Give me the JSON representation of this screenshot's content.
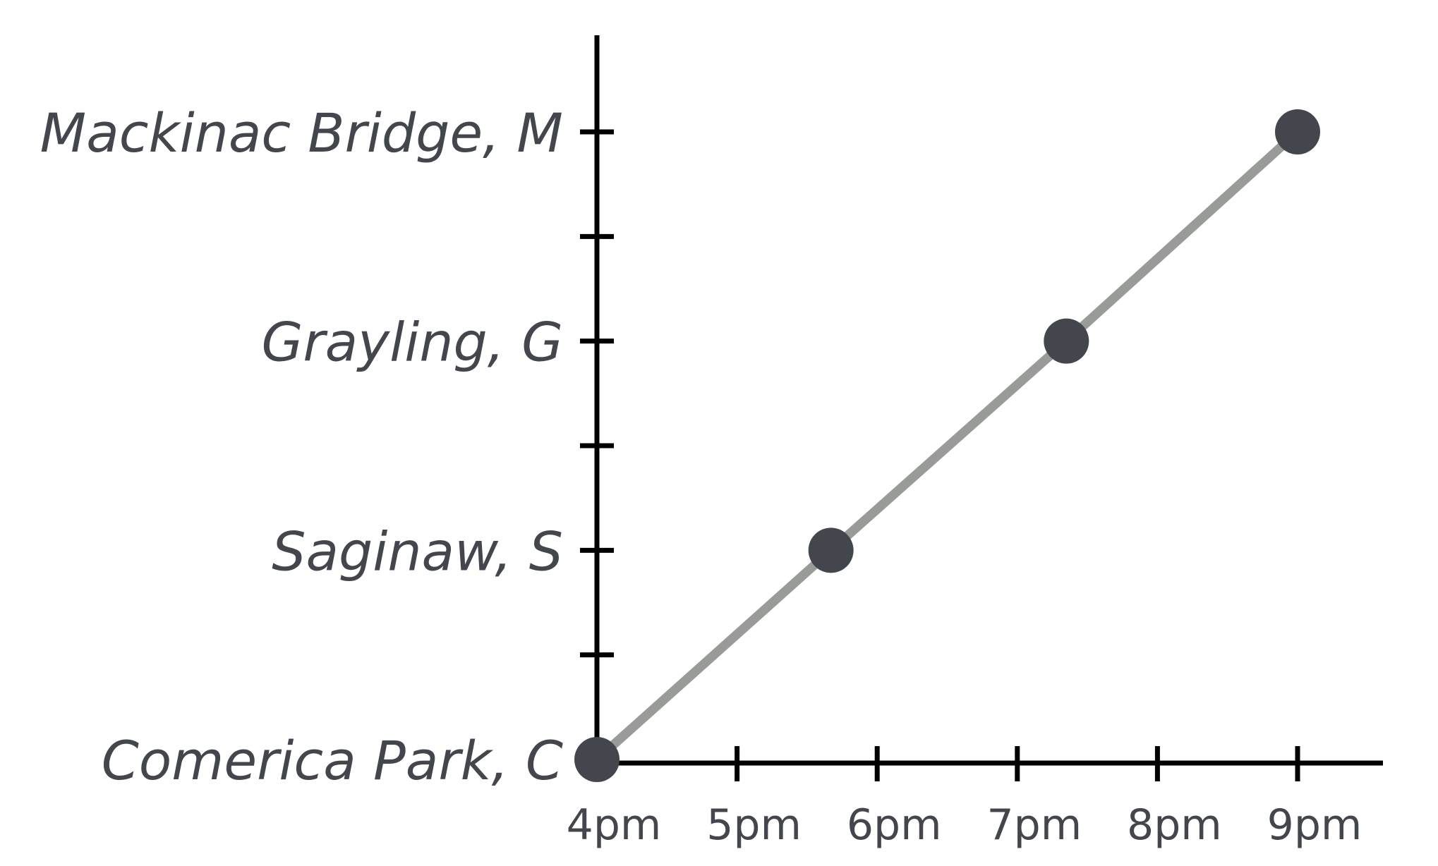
{
  "chart_data": {
    "type": "line",
    "title": "",
    "xlabel": "",
    "ylabel": "",
    "x_ticks": [
      "4pm",
      "5pm",
      "6pm",
      "7pm",
      "8pm",
      "9pm"
    ],
    "xlim": [
      0,
      5
    ],
    "y_ticks": [
      {
        "value": 0,
        "label": "Comerica Park, C"
      },
      {
        "value": 0.5,
        "label": ""
      },
      {
        "value": 1,
        "label": "Saginaw, S"
      },
      {
        "value": 1.5,
        "label": ""
      },
      {
        "value": 2,
        "label": "Grayling, G"
      },
      {
        "value": 2.5,
        "label": ""
      },
      {
        "value": 3,
        "label": "Mackinac Bridge, M"
      }
    ],
    "ylim": [
      0,
      3
    ],
    "grid": false,
    "series": [
      {
        "points": [
          {
            "x": 0,
            "y": 0
          },
          {
            "x": 1.67,
            "y": 1
          },
          {
            "x": 3.35,
            "y": 2
          },
          {
            "x": 5,
            "y": 3
          }
        ]
      }
    ],
    "colors": {
      "line": "#999b98",
      "points": "#43464d",
      "axis": "#000000",
      "text": "#43464d"
    }
  }
}
